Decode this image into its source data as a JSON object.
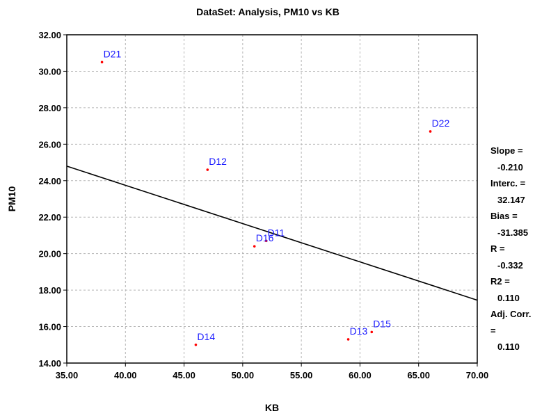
{
  "chart_data": {
    "type": "scatter",
    "title": "DataSet: Analysis, PM10 vs KB",
    "xlabel": "KB",
    "ylabel": "PM10",
    "xlim": [
      35,
      70
    ],
    "ylim": [
      14,
      32
    ],
    "xticks": [
      "35.00",
      "40.00",
      "45.00",
      "50.00",
      "55.00",
      "60.00",
      "65.00",
      "70.00"
    ],
    "yticks": [
      "14.00",
      "16.00",
      "18.00",
      "20.00",
      "22.00",
      "24.00",
      "26.00",
      "28.00",
      "30.00",
      "32.00"
    ],
    "xtick_values": [
      35,
      40,
      45,
      50,
      55,
      60,
      65,
      70
    ],
    "ytick_values": [
      14,
      16,
      18,
      20,
      22,
      24,
      26,
      28,
      30,
      32
    ],
    "grid": true,
    "point_color": "#ff0000",
    "label_color": "#1a1aff",
    "line_color": "#000000",
    "points": [
      {
        "label": "D21",
        "x": 38.0,
        "y": 30.5
      },
      {
        "label": "D22",
        "x": 66.0,
        "y": 26.7
      },
      {
        "label": "D12",
        "x": 47.0,
        "y": 24.6
      },
      {
        "label": "D11",
        "x": 52.0,
        "y": 20.7
      },
      {
        "label": "D16",
        "x": 51.0,
        "y": 20.4
      },
      {
        "label": "D14",
        "x": 46.0,
        "y": 15.0
      },
      {
        "label": "D13",
        "x": 59.0,
        "y": 15.3
      },
      {
        "label": "D15",
        "x": 61.0,
        "y": 15.7
      }
    ],
    "regression": {
      "slope": -0.21,
      "intercept": 32.147
    }
  },
  "stats": {
    "slope_label": "Slope =",
    "slope_value": "-0.210",
    "interc_label": "Interc. =",
    "interc_value": "32.147",
    "bias_label": "Bias =",
    "bias_value": "-31.385",
    "r_label": "R =",
    "r_value": "-0.332",
    "r2_label": "R2 =",
    "r2_value": "0.110",
    "adj_label": "Adj. Corr. =",
    "adj_value": "0.110"
  }
}
